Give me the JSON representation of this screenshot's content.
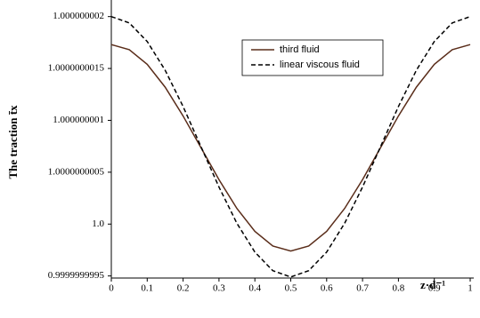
{
  "chart_data": {
    "type": "line",
    "x_label": "z·d⁻¹",
    "y_label": "The traction t̄x",
    "x": [
      0,
      0.05,
      0.1,
      0.15,
      0.2,
      0.25,
      0.3,
      0.35,
      0.4,
      0.45,
      0.5,
      0.55,
      0.6,
      0.65,
      0.7,
      0.75,
      0.8,
      0.85,
      0.9,
      0.95,
      1
    ],
    "series": [
      {
        "name": "third fluid",
        "color": "#5a2d1a",
        "dash": "solid",
        "values": [
          1.00000000173,
          1.000000001681,
          1.00000000154,
          1.00000000132,
          1.000000001042,
          1.000000000735,
          1.000000000428,
          1.00000000015,
          0.99999999993,
          0.999999999789,
          0.99999999974,
          0.999999999789,
          0.99999999993,
          1.00000000015,
          1.000000000428,
          1.000000000735,
          1.000000001042,
          1.00000000132,
          1.00000000154,
          1.000000001681,
          1.00000000173
        ]
      },
      {
        "name": "linear viscous fluid",
        "color": "#000000",
        "dash": "dashed",
        "values": [
          1.000000002,
          1.000000001939,
          1.00000000176,
          1.000000001483,
          1.000000001133,
          1.000000000745,
          1.000000000357,
          1.000000000007,
          0.99999999973,
          0.999999999551,
          0.99999999949,
          0.999999999551,
          0.99999999973,
          1.000000000007,
          1.000000000357,
          1.000000000745,
          1.000000001133,
          1.000000001483,
          1.00000000176,
          1.000000001939,
          1.000000002
        ]
      }
    ],
    "xlim": [
      0,
      1
    ],
    "xticks": [
      0,
      0.1,
      0.2,
      0.3,
      0.4,
      0.5,
      0.6,
      0.7,
      0.8,
      0.9,
      1
    ],
    "ylim": [
      0.99999999948,
      1.0000000021
    ],
    "yticks": [
      0.9999999995,
      {
        "value": 1,
        "label": "1.0"
      },
      1.0000000005,
      1.000000001,
      1.0000000015,
      1.000000002
    ],
    "legend": "top-center"
  }
}
